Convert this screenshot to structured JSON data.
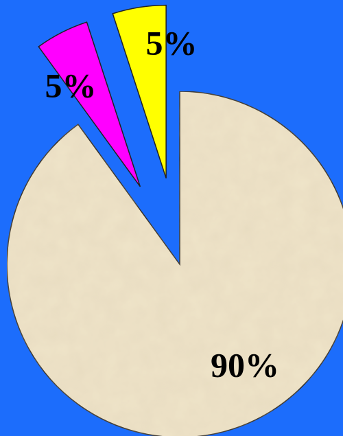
{
  "chart_data": {
    "type": "pie",
    "values": [
      90,
      5,
      5
    ],
    "value_labels": [
      "90%",
      "5%",
      "5%"
    ],
    "colors": [
      "#efe4c9",
      "#ff00ff",
      "#ffff00"
    ],
    "exploded": [
      false,
      true,
      true
    ]
  }
}
